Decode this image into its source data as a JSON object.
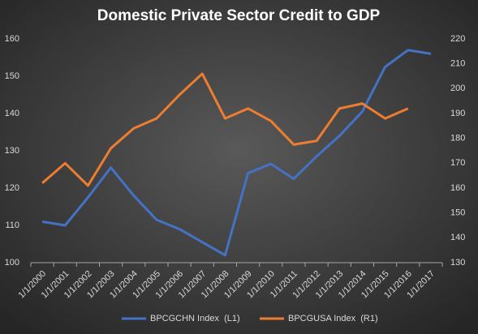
{
  "chart_data": {
    "type": "line",
    "title": "Domestic Private Sector Credit to GDP",
    "categories": [
      "1/1/2000",
      "1/1/2001",
      "1/1/2002",
      "1/1/2003",
      "1/1/2004",
      "1/1/2005",
      "1/1/2006",
      "1/1/2007",
      "1/1/2008",
      "1/1/2009",
      "1/1/2010",
      "1/1/2011",
      "1/1/2012",
      "1/1/2013",
      "1/1/2014",
      "1/1/2015",
      "1/1/2016",
      "1/1/2017"
    ],
    "series": [
      {
        "name": "BPCGCHN Index  (L1)",
        "color": "#4472c4",
        "axis": "y",
        "values": [
          111,
          110,
          117.5,
          125.5,
          118,
          111.5,
          109,
          105.5,
          102,
          124,
          126.5,
          122.5,
          128.5,
          134,
          140.5,
          152.5,
          157,
          156
        ]
      },
      {
        "name": "BPCGUSA Index  (R1)",
        "color": "#ed7d31",
        "axis": "y2",
        "values": [
          162,
          170,
          161,
          176,
          184,
          188,
          197.5,
          206,
          188,
          192,
          187,
          177.5,
          179,
          192,
          194,
          188,
          192,
          null
        ]
      }
    ],
    "ylim": [
      100,
      160
    ],
    "yticks": [
      100,
      110,
      120,
      130,
      140,
      150,
      160
    ],
    "y2lim": [
      130,
      220
    ],
    "y2ticks": [
      130,
      140,
      150,
      160,
      170,
      180,
      190,
      200,
      210,
      220
    ],
    "legend": "bottom"
  }
}
